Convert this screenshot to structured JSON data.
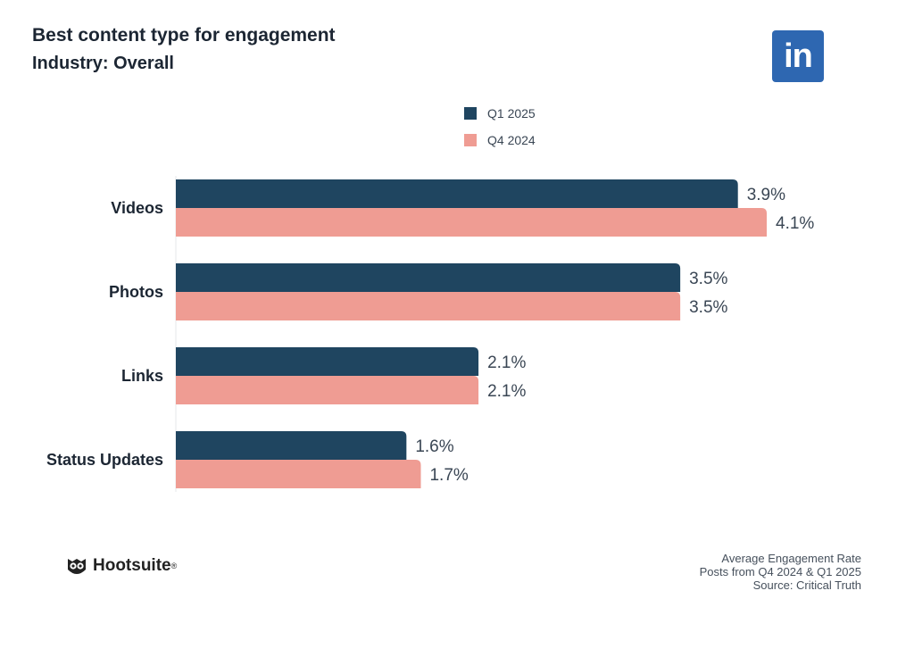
{
  "header": {
    "title": "Best content type for engagement",
    "subtitle": "Industry: Overall",
    "logo_text": "in"
  },
  "footer": {
    "brand": "Hootsuite",
    "brand_mark": "®",
    "notes": [
      "Average Engagement Rate",
      "Posts from Q4 2024 & Q1 2025",
      "Source: Critical Truth"
    ]
  },
  "colors": {
    "q1_2025": "#1f4560",
    "q4_2024": "#ef9c93",
    "linkedin": "#2e67b1"
  },
  "chart_data": {
    "type": "bar",
    "orientation": "horizontal",
    "title": "Best content type for engagement",
    "subtitle": "Industry: Overall",
    "categories": [
      "Videos",
      "Photos",
      "Links",
      "Status Updates"
    ],
    "series": [
      {
        "name": "Q1 2025",
        "values": [
          3.9,
          3.5,
          2.1,
          1.6
        ],
        "labels": [
          "3.9%",
          "3.5%",
          "2.1%",
          "1.6%"
        ]
      },
      {
        "name": "Q4 2024",
        "values": [
          4.1,
          3.5,
          2.1,
          1.7
        ],
        "labels": [
          "4.1%",
          "3.5%",
          "2.1%",
          "1.7%"
        ]
      }
    ],
    "unit": "%",
    "xlim": [
      0,
      4.1
    ],
    "legend": "top-center",
    "grid": false
  }
}
